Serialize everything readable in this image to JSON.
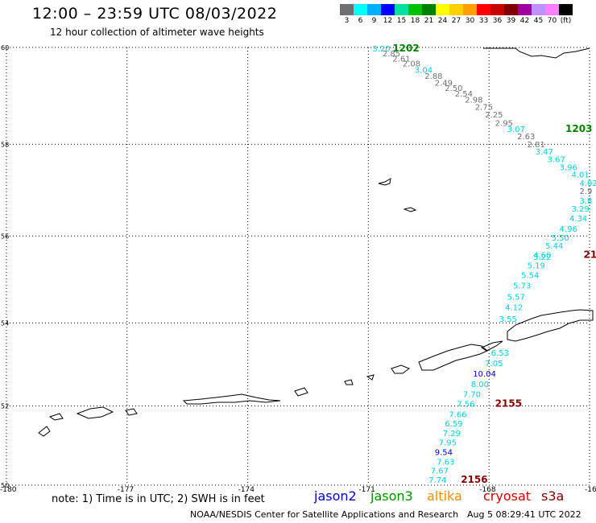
{
  "title": "12:00 – 23:59 UTC 08/03/2022",
  "subtitle": "12 hour collection of altimeter wave heights",
  "colorbar": {
    "colors": [
      "#707070",
      "#00ffff",
      "#00b0ff",
      "#0000ff",
      "#00e0a0",
      "#00c000",
      "#008000",
      "#ffff00",
      "#ffd000",
      "#ffa000",
      "#ff0000",
      "#c80000",
      "#800000",
      "#a000a0",
      "#c090ff",
      "#ff80ff",
      "#000000"
    ],
    "labels": [
      "3",
      "6",
      "9",
      "12",
      "15",
      "18",
      "21",
      "24",
      "27",
      "30",
      "33",
      "36",
      "39",
      "42",
      "45",
      "70",
      "(ft)"
    ]
  },
  "axes": {
    "lat_ticks": [
      "60",
      "58",
      "56",
      "54",
      "52",
      "50"
    ],
    "lon_ticks": [
      "-180",
      "-177",
      "-174",
      "-171",
      "-168",
      "-16"
    ]
  },
  "track_points": [
    {
      "v": "3.20",
      "lon": -170.9,
      "lat": 59.98,
      "c": "#00d0e0"
    },
    {
      "v": "2.85",
      "lon": -170.65,
      "lat": 59.89,
      "c": "#707070"
    },
    {
      "v": "2.61",
      "lon": -170.4,
      "lat": 59.78,
      "c": "#707070"
    },
    {
      "v": "2.08",
      "lon": -170.15,
      "lat": 59.68,
      "c": "#707070"
    },
    {
      "v": "3.04",
      "lon": -169.85,
      "lat": 59.55,
      "c": "#00d0e0"
    },
    {
      "v": "2.88",
      "lon": -169.6,
      "lat": 59.43,
      "c": "#707070"
    },
    {
      "v": "2.49",
      "lon": -169.35,
      "lat": 59.29,
      "c": "#707070"
    },
    {
      "v": "2.50",
      "lon": -169.1,
      "lat": 59.18,
      "c": "#707070"
    },
    {
      "v": "2.54",
      "lon": -168.85,
      "lat": 59.07,
      "c": "#707070"
    },
    {
      "v": "2.98",
      "lon": -168.6,
      "lat": 58.94,
      "c": "#707070"
    },
    {
      "v": "2.75",
      "lon": -168.35,
      "lat": 58.79,
      "c": "#707070"
    },
    {
      "v": "2.25",
      "lon": -168.1,
      "lat": 58.63,
      "c": "#707070"
    },
    {
      "v": "2.95",
      "lon": -167.85,
      "lat": 58.46,
      "c": "#707070"
    },
    {
      "v": "3.07",
      "lon": -167.55,
      "lat": 58.33,
      "c": "#00d0e0"
    },
    {
      "v": "2.63",
      "lon": -167.3,
      "lat": 58.18,
      "c": "#707070"
    },
    {
      "v": "2.81",
      "lon": -167.05,
      "lat": 58.01,
      "c": "#707070"
    },
    {
      "v": "3.47",
      "lon": -166.85,
      "lat": 57.85,
      "c": "#00d0e0"
    },
    {
      "v": "3.67",
      "lon": -166.55,
      "lat": 57.69,
      "c": "#00d0e0"
    },
    {
      "v": "3.96",
      "lon": -166.25,
      "lat": 57.52,
      "c": "#00d0e0"
    },
    {
      "v": "4.01",
      "lon": -165.95,
      "lat": 57.36,
      "c": "#00d0e0"
    },
    {
      "v": "4.02",
      "lon": -165.75,
      "lat": 57.18,
      "c": "#00d0e0"
    },
    {
      "v": "2.9",
      "lon": -165.75,
      "lat": 57.0,
      "c": "#707070"
    },
    {
      "v": "3.8",
      "lon": -165.75,
      "lat": 56.79,
      "c": "#00d0e0"
    },
    {
      "v": "3.29",
      "lon": -165.95,
      "lat": 56.61,
      "c": "#00d0e0"
    },
    {
      "v": "4.34",
      "lon": -166.0,
      "lat": 56.4,
      "c": "#00d0e0"
    },
    {
      "v": "4.96",
      "lon": -166.25,
      "lat": 56.17,
      "c": "#00d0e0"
    },
    {
      "v": "5.50",
      "lon": -166.45,
      "lat": 55.97,
      "c": "#00d0e0"
    },
    {
      "v": "5.44",
      "lon": -166.6,
      "lat": 55.79,
      "c": "#00d0e0"
    },
    {
      "v": "4.60",
      "lon": -166.9,
      "lat": 55.58,
      "c": "#00d0e0"
    },
    {
      "v": "5.22",
      "lon": -166.9,
      "lat": 55.53,
      "c": "#00d0e0"
    },
    {
      "v": "5.19",
      "lon": -167.05,
      "lat": 55.34,
      "c": "#00d0e0"
    },
    {
      "v": "5.54",
      "lon": -167.2,
      "lat": 55.12,
      "c": "#00d0e0"
    },
    {
      "v": "5.73",
      "lon": -167.4,
      "lat": 54.88,
      "c": "#00d0e0"
    },
    {
      "v": "5.57",
      "lon": -167.55,
      "lat": 54.62,
      "c": "#00d0e0"
    },
    {
      "v": "4.12",
      "lon": -167.6,
      "lat": 54.38,
      "c": "#00d0e0"
    },
    {
      "v": "3.55",
      "lon": -167.75,
      "lat": 54.1,
      "c": "#00d0e0"
    },
    {
      "v": "6.53",
      "lon": -167.95,
      "lat": 53.3,
      "c": "#00d0e0"
    },
    {
      "v": "7.05",
      "lon": -168.1,
      "lat": 53.05,
      "c": "#00d0e0"
    },
    {
      "v": "10.04",
      "lon": -168.4,
      "lat": 52.8,
      "c": "#0000c0"
    },
    {
      "v": "8.00",
      "lon": -168.45,
      "lat": 52.54,
      "c": "#00d0e0"
    },
    {
      "v": "7.70",
      "lon": -168.65,
      "lat": 52.3,
      "c": "#00d0e0"
    },
    {
      "v": "7.56",
      "lon": -168.8,
      "lat": 52.06,
      "c": "#00d0e0"
    },
    {
      "v": "7.66",
      "lon": -169.0,
      "lat": 51.8,
      "c": "#00d0e0"
    },
    {
      "v": "6.59",
      "lon": -169.1,
      "lat": 51.57,
      "c": "#00d0e0"
    },
    {
      "v": "7.29",
      "lon": -169.15,
      "lat": 51.33,
      "c": "#00d0e0"
    },
    {
      "v": "7.95",
      "lon": -169.25,
      "lat": 51.1,
      "c": "#00d0e0"
    },
    {
      "v": "9.54",
      "lon": -169.35,
      "lat": 50.85,
      "c": "#0000c0"
    },
    {
      "v": "7.63",
      "lon": -169.3,
      "lat": 50.61,
      "c": "#00d0e0"
    },
    {
      "v": "7.67",
      "lon": -169.45,
      "lat": 50.38,
      "c": "#00d0e0"
    },
    {
      "v": "7.74",
      "lon": -169.5,
      "lat": 50.15,
      "c": "#00d0e0"
    }
  ],
  "time_labels": [
    {
      "t": "1202",
      "lon": -170.4,
      "lat": 59.98,
      "c": "#008000"
    },
    {
      "t": "1203",
      "lon": -166.1,
      "lat": 58.33,
      "c": "#008000"
    },
    {
      "t": "21",
      "lon": -165.65,
      "lat": 55.58,
      "c": "#800000"
    },
    {
      "t": "2155",
      "lon": -167.85,
      "lat": 52.06,
      "c": "#800000"
    },
    {
      "t": "2156",
      "lon": -168.7,
      "lat": 50.15,
      "c": "#800000"
    }
  ],
  "note": "note:  1) Time is in UTC;  2) SWH is in feet",
  "legend": [
    {
      "name": "jason2",
      "color": "#0000cc"
    },
    {
      "name": "jason3",
      "color": "#009000"
    },
    {
      "name": "altika",
      "color": "#ff8c00"
    },
    {
      "name": "cryosat",
      "color": "#cc0000"
    },
    {
      "name": "s3a",
      "color": "#800000"
    }
  ],
  "footer": "NOAA/NESDIS Center for Satellite Applications and Research",
  "footer_date": "Aug  5 08:29:41 UTC 2022"
}
